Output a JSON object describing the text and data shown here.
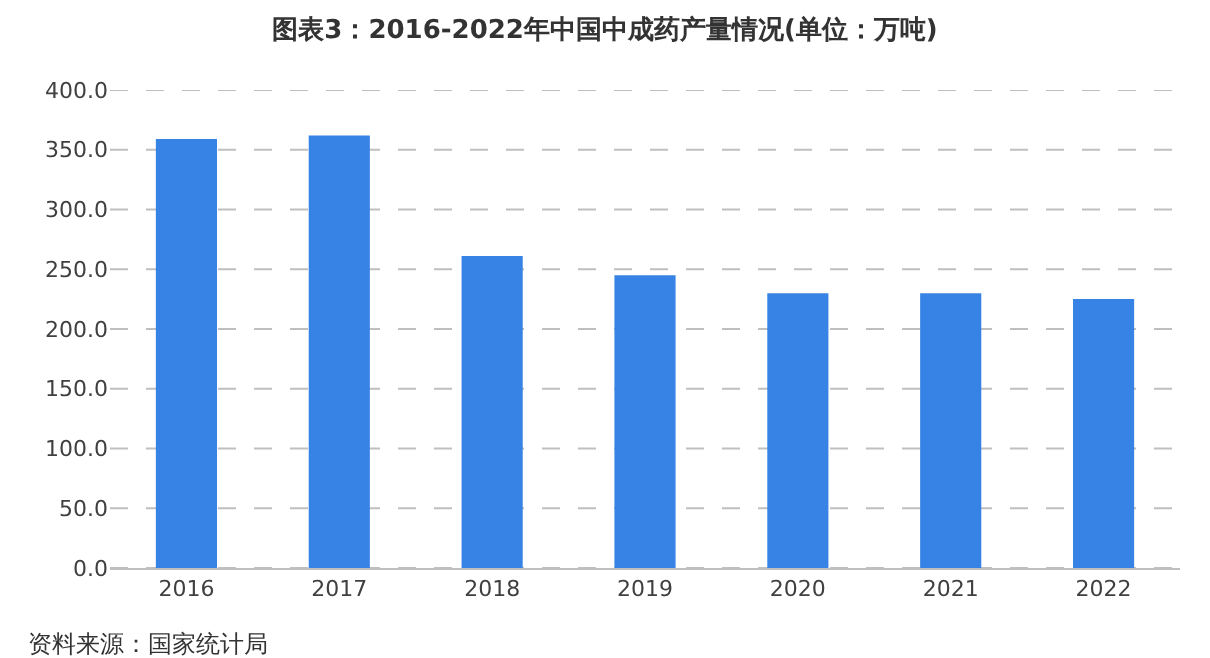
{
  "chart_data": {
    "type": "bar",
    "title": "图表3：2016-2022年中国中成药产量情况(单位：万吨)",
    "categories": [
      "2016",
      "2017",
      "2018",
      "2019",
      "2020",
      "2021",
      "2022"
    ],
    "values": [
      359,
      362,
      261,
      245,
      230,
      230,
      225
    ],
    "color": "#3683e5",
    "ylim": [
      0,
      400
    ],
    "yticks": [
      {
        "value": 0,
        "label": "0.0"
      },
      {
        "value": 50,
        "label": "50.0"
      },
      {
        "value": 100,
        "label": "100.0"
      },
      {
        "value": 150,
        "label": "150.0"
      },
      {
        "value": 200,
        "label": "200.0"
      },
      {
        "value": 250,
        "label": "250.0"
      },
      {
        "value": 300,
        "label": "300.0"
      },
      {
        "value": 350,
        "label": "350.0"
      },
      {
        "value": 400,
        "label": "400.0"
      }
    ],
    "grid": "y",
    "annotations": [
      "资料来源：国家统计局"
    ]
  }
}
